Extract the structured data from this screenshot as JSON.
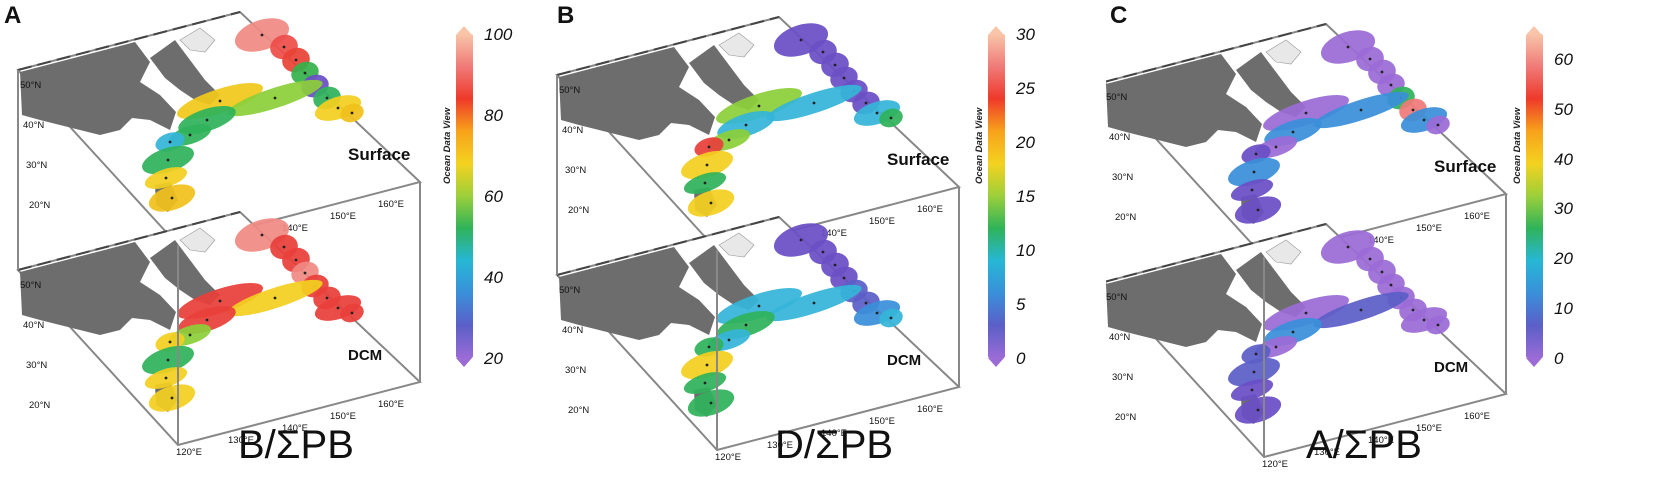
{
  "panels": [
    {
      "letter": "A",
      "ratio_label": "B/ΣPB",
      "layers": [
        "Surface",
        "DCM"
      ],
      "colorbar": {
        "min": 20,
        "max": 100,
        "ticks": [
          "100",
          "80",
          "60",
          "40",
          "20"
        ],
        "credit": "Ocean Data View"
      },
      "lat_labels": [
        "50°N",
        "40°N",
        "30°N",
        "20°N"
      ],
      "lon_labels": [
        "120°E",
        "130°E",
        "140°E",
        "150°E",
        "160°E"
      ]
    },
    {
      "letter": "B",
      "ratio_label": "D/ΣPB",
      "layers": [
        "Surface",
        "DCM"
      ],
      "colorbar": {
        "min": 0,
        "max": 30,
        "ticks": [
          "30",
          "25",
          "20",
          "15",
          "10",
          "5",
          "0"
        ],
        "credit": "Ocean Data View"
      },
      "lat_labels": [
        "50°N",
        "40°N",
        "30°N",
        "20°N"
      ],
      "lon_labels": [
        "120°E",
        "130°E",
        "140°E",
        "150°E",
        "160°E"
      ]
    },
    {
      "letter": "C",
      "ratio_label": "A/ΣPB",
      "layers": [
        "Surface",
        "DCM"
      ],
      "colorbar": {
        "min": 0,
        "max": 65,
        "ticks": [
          "60",
          "50",
          "40",
          "30",
          "20",
          "10",
          "0"
        ],
        "credit": "Ocean Data View"
      },
      "lat_labels": [
        "50°N",
        "40°N",
        "30°N",
        "20°N"
      ],
      "lon_labels": [
        "120°E",
        "130°E",
        "140°E",
        "150°E",
        "160°E"
      ]
    }
  ],
  "colors": {
    "land": "#6d6d6d",
    "frame": "#888888"
  }
}
